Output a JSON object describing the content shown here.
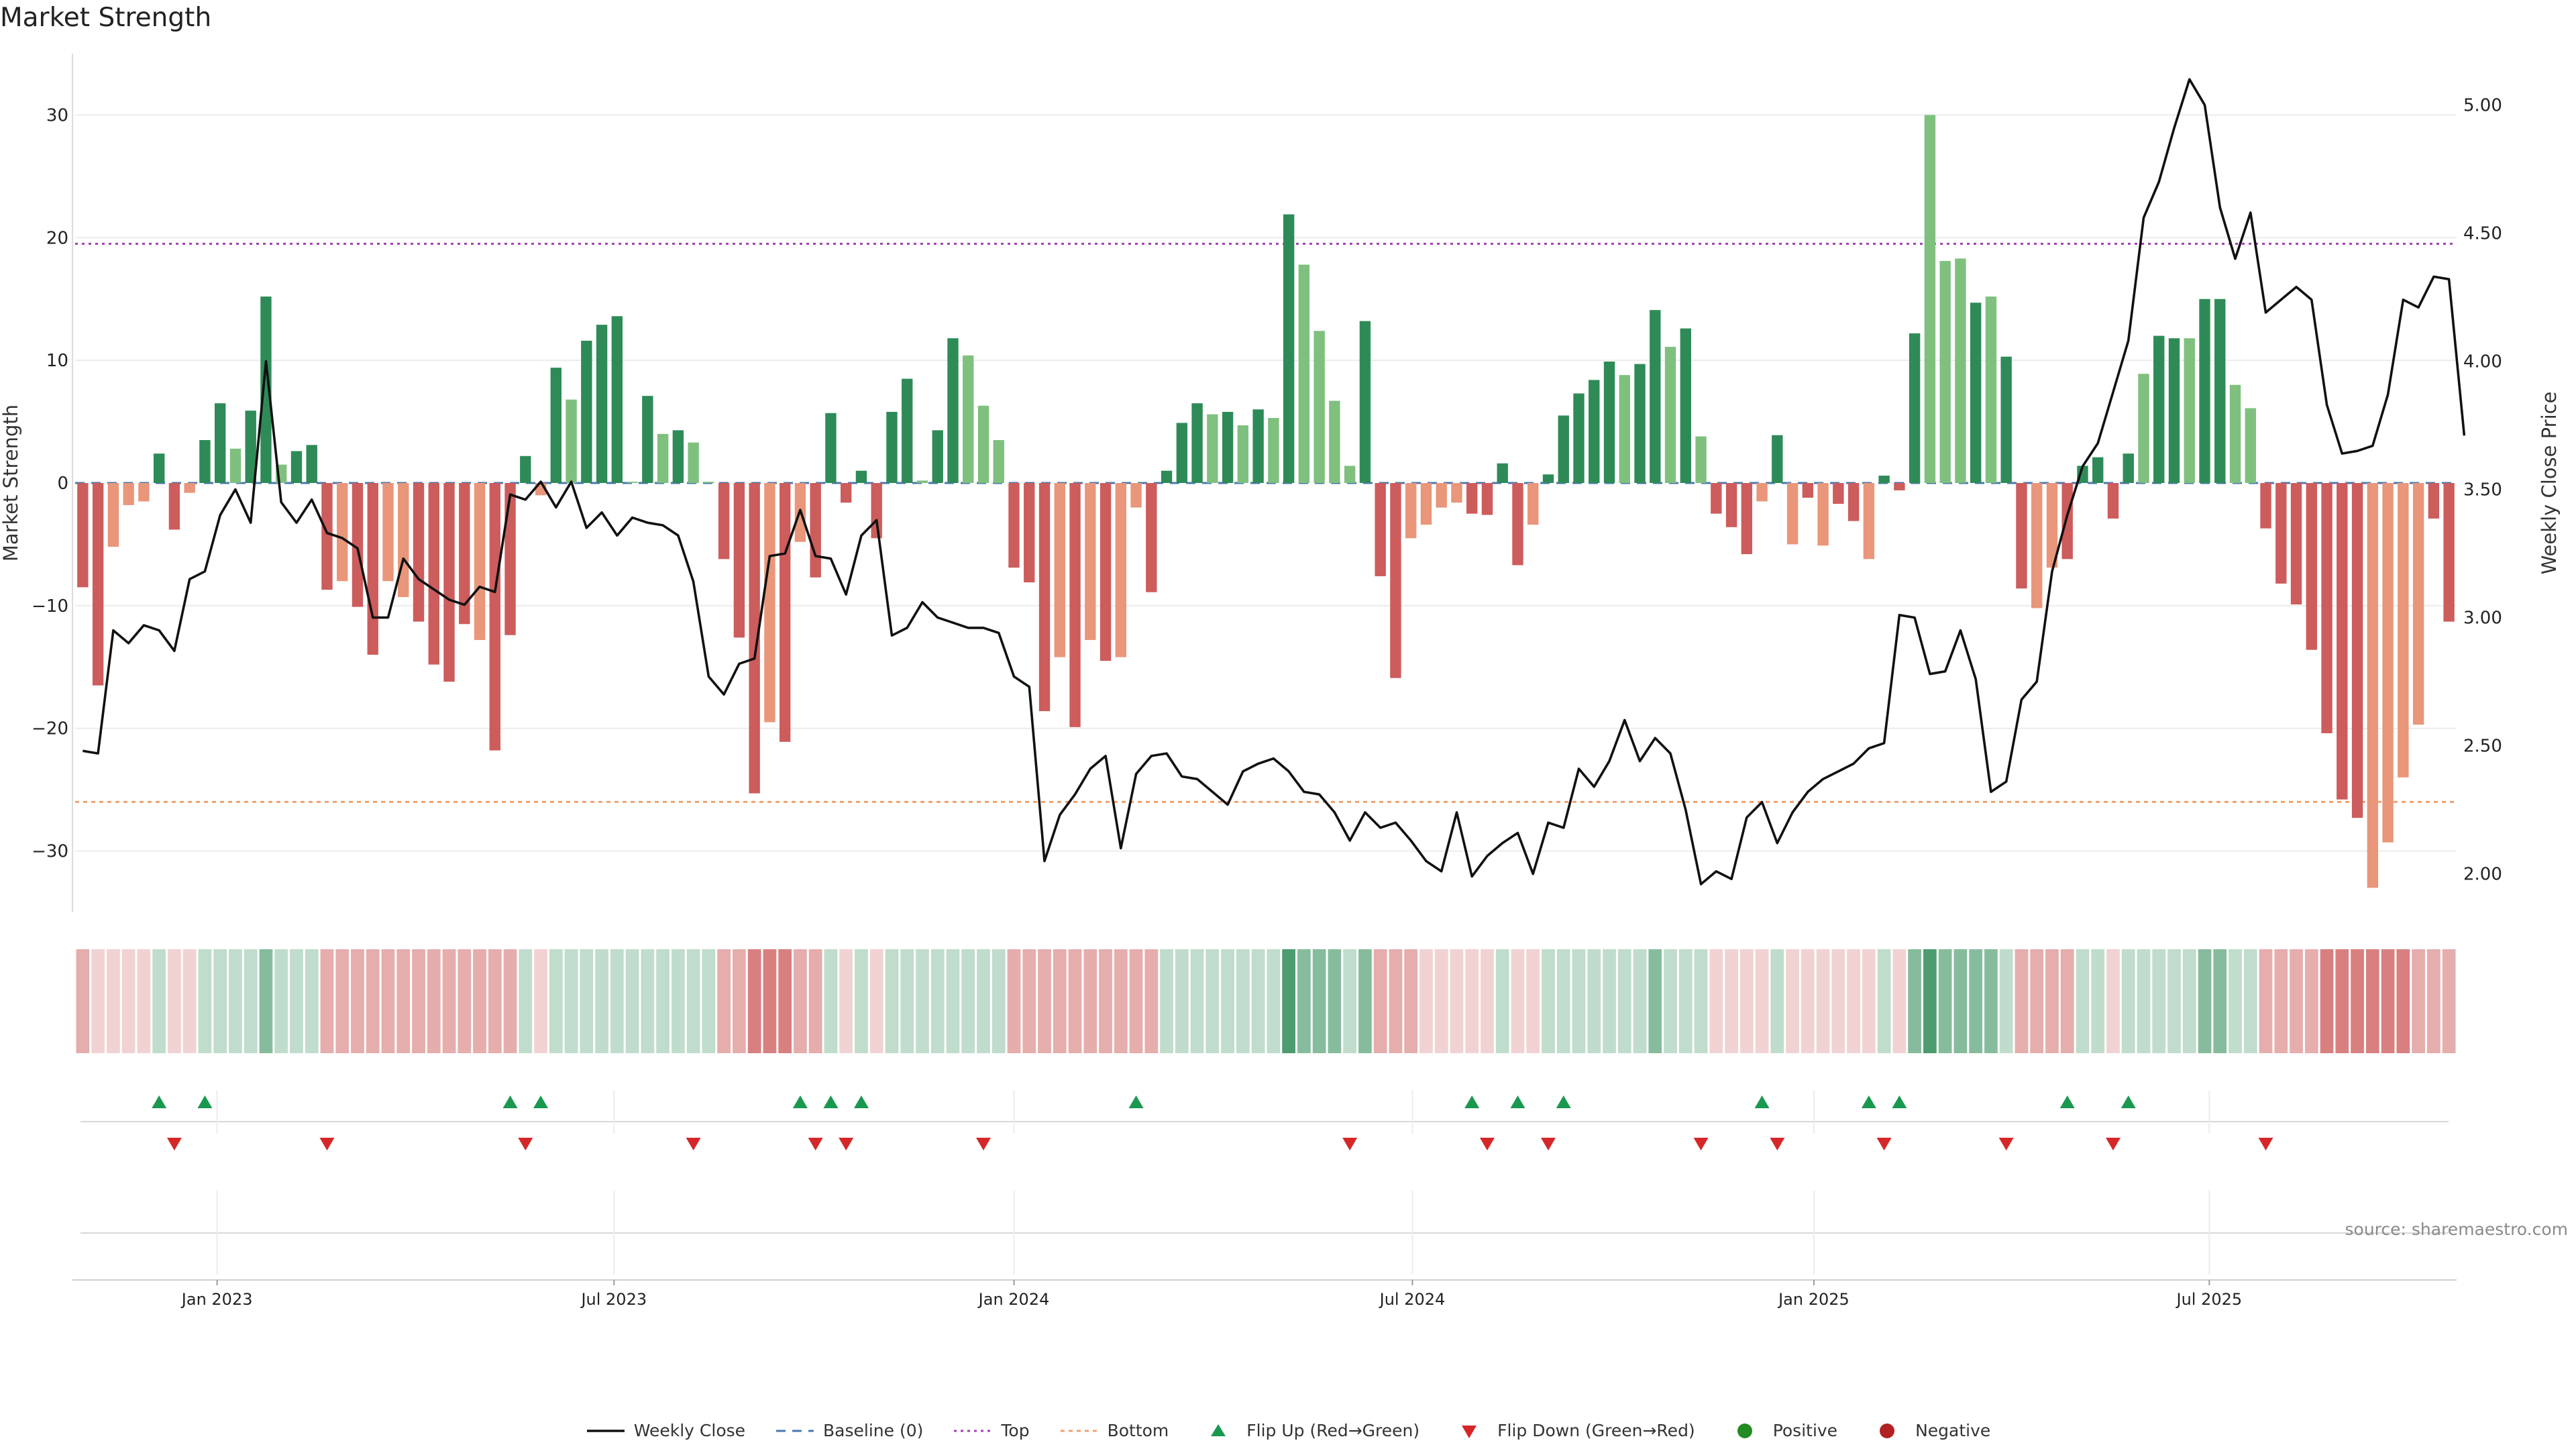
{
  "title": "Market Strength",
  "source": "source: sharemaestro.com",
  "colors": {
    "pos_strong": "#2e8b57",
    "pos_light": "#7fc07f",
    "neg_strong": "#cd5c5c",
    "neg_light": "#e9967a",
    "price_line": "#111111",
    "baseline": "#4a78b0",
    "top": "#a040b0",
    "bottom": "#f0a070",
    "flip_up": "#1a9850",
    "flip_down": "#d62728"
  },
  "legend": [
    {
      "key": "line",
      "label": "Weekly Close"
    },
    {
      "key": "baseline",
      "label": "Baseline (0)"
    },
    {
      "key": "top",
      "label": "Top"
    },
    {
      "key": "bottom",
      "label": "Bottom"
    },
    {
      "key": "flip_up",
      "label": "Flip Up (Red→Green)"
    },
    {
      "key": "flip_down",
      "label": "Flip Down (Green→Red)"
    },
    {
      "key": "positive",
      "label": "Positive"
    },
    {
      "key": "negative",
      "label": "Negative"
    }
  ],
  "chart_data": {
    "type": "bar",
    "title": "Market Strength",
    "ylabel": "Market Strength",
    "y2label": "Weekly Close Price",
    "ylim": [
      -35,
      35
    ],
    "y2lim": [
      1.85,
      5.2
    ],
    "yticks": [
      -30,
      -20,
      -10,
      0,
      10,
      20,
      30
    ],
    "y2ticks": [
      "2.00",
      "2.50",
      "3.00",
      "3.50",
      "4.00",
      "4.50",
      "5.00"
    ],
    "y2tick_values": [
      2.0,
      2.5,
      3.0,
      3.5,
      4.0,
      4.5,
      5.0
    ],
    "top_level": 19.5,
    "bottom_level": -26,
    "xticks": [
      {
        "label": "Jan 2023",
        "index": 9.3
      },
      {
        "label": "Jul 2023",
        "index": 35.3
      },
      {
        "label": "Jan 2024",
        "index": 61.5
      },
      {
        "label": "Jul 2024",
        "index": 87.6
      },
      {
        "label": "Jan 2025",
        "index": 113.9
      },
      {
        "label": "Jul 2025",
        "index": 139.8
      }
    ],
    "strength": [
      -8.5,
      -16.5,
      -5.2,
      -1.8,
      -1.5,
      2.4,
      -3.8,
      -0.8,
      3.5,
      6.5,
      2.8,
      5.9,
      15.2,
      1.5,
      2.6,
      3.1,
      -8.7,
      -8.0,
      -10.1,
      -14.0,
      -8.0,
      -9.3,
      -11.3,
      -14.8,
      -16.2,
      -11.5,
      -12.8,
      -21.8,
      -12.4,
      2.2,
      -1.0,
      9.4,
      6.8,
      11.6,
      12.9,
      13.6,
      0.1,
      7.1,
      4.0,
      4.3,
      3.3,
      0.1,
      -6.2,
      -12.6,
      -25.3,
      -19.5,
      -21.1,
      -4.8,
      -7.7,
      5.7,
      -1.6,
      1.0,
      -4.5,
      5.8,
      8.5,
      0.2,
      4.3,
      11.8,
      10.4,
      6.3,
      3.5,
      -6.9,
      -8.1,
      -18.6,
      -14.2,
      -19.9,
      -12.8,
      -14.5,
      -14.2,
      -2.0,
      -8.9,
      1.0,
      4.9,
      6.5,
      5.6,
      5.8,
      4.7,
      6.0,
      5.3,
      21.9,
      17.8,
      12.4,
      6.7,
      1.4,
      13.2,
      -7.6,
      -15.9,
      -4.5,
      -3.4,
      -2.0,
      -1.6,
      -2.5,
      -2.6,
      1.6,
      -6.7,
      -3.4,
      0.7,
      5.5,
      7.3,
      8.4,
      9.9,
      8.8,
      9.7,
      14.1,
      11.1,
      12.6,
      3.8,
      -2.5,
      -3.6,
      -5.8,
      -1.5,
      3.9,
      -5.0,
      -1.2,
      -5.1,
      -1.7,
      -3.1,
      -6.2,
      0.6,
      -0.6,
      12.2,
      30.0,
      18.1,
      18.3,
      14.7,
      15.2,
      10.3,
      -8.6,
      -10.2,
      -6.9,
      -6.2,
      1.4,
      2.1,
      -2.9,
      2.4,
      8.9,
      12.0,
      11.8,
      11.8,
      15.0,
      15.0,
      8.0,
      6.1,
      -3.7,
      -8.2,
      -9.9,
      -13.6,
      -20.4,
      -25.8,
      -27.3,
      -33.0,
      -29.3,
      -24.0,
      -19.7,
      -2.9,
      -11.3
    ],
    "strength_light": [
      0,
      0,
      1,
      1,
      1,
      0,
      0,
      1,
      0,
      0,
      1,
      0,
      0,
      1,
      0,
      0,
      0,
      1,
      0,
      0,
      1,
      1,
      0,
      0,
      0,
      0,
      1,
      0,
      0,
      0,
      1,
      0,
      1,
      0,
      0,
      0,
      1,
      0,
      1,
      0,
      1,
      1,
      0,
      0,
      0,
      1,
      0,
      1,
      0,
      0,
      0,
      0,
      0,
      0,
      0,
      1,
      0,
      0,
      1,
      1,
      1,
      0,
      0,
      0,
      1,
      0,
      1,
      0,
      1,
      1,
      0,
      0,
      0,
      0,
      1,
      0,
      1,
      0,
      1,
      0,
      1,
      1,
      1,
      1,
      0,
      0,
      0,
      1,
      1,
      1,
      1,
      0,
      0,
      0,
      0,
      1,
      0,
      0,
      0,
      0,
      0,
      1,
      0,
      0,
      1,
      0,
      1,
      0,
      0,
      0,
      1,
      0,
      1,
      0,
      1,
      0,
      0,
      1,
      0,
      0,
      0,
      1,
      1,
      1,
      0,
      1,
      0,
      0,
      1,
      1,
      0,
      0,
      0,
      0,
      0,
      1,
      0,
      0,
      1,
      0,
      0,
      1,
      1,
      0,
      0,
      0,
      0,
      0,
      0,
      0,
      1,
      1,
      1,
      1,
      0,
      0
    ],
    "price": [
      2.48,
      2.47,
      2.95,
      2.9,
      2.97,
      2.95,
      2.87,
      3.15,
      3.18,
      3.4,
      3.5,
      3.37,
      4.0,
      3.45,
      3.37,
      3.46,
      3.33,
      3.31,
      3.27,
      3.0,
      3.0,
      3.23,
      3.15,
      3.11,
      3.07,
      3.05,
      3.12,
      3.1,
      3.48,
      3.46,
      3.53,
      3.43,
      3.53,
      3.35,
      3.41,
      3.32,
      3.39,
      3.37,
      3.36,
      3.32,
      3.14,
      2.77,
      2.7,
      2.82,
      2.84,
      3.24,
      3.25,
      3.42,
      3.24,
      3.23,
      3.09,
      3.32,
      3.38,
      2.93,
      2.96,
      3.06,
      3.0,
      2.98,
      2.96,
      2.96,
      2.94,
      2.77,
      2.73,
      2.05,
      2.23,
      2.31,
      2.41,
      2.46,
      2.1,
      2.39,
      2.46,
      2.47,
      2.38,
      2.37,
      2.32,
      2.27,
      2.4,
      2.43,
      2.45,
      2.4,
      2.32,
      2.31,
      2.24,
      2.13,
      2.24,
      2.18,
      2.2,
      2.13,
      2.05,
      2.01,
      2.24,
      1.99,
      2.07,
      2.12,
      2.16,
      2.0,
      2.2,
      2.18,
      2.41,
      2.34,
      2.44,
      2.6,
      2.44,
      2.53,
      2.47,
      2.25,
      1.96,
      2.01,
      1.98,
      2.22,
      2.28,
      2.12,
      2.24,
      2.32,
      2.37,
      2.4,
      2.43,
      2.49,
      2.51,
      3.01,
      3.0,
      2.78,
      2.79,
      2.95,
      2.76,
      2.32,
      2.36,
      2.68,
      2.75,
      3.18,
      3.4,
      3.59,
      3.68,
      3.88,
      4.08,
      4.56,
      4.7,
      4.91,
      5.1,
      5.0,
      4.6,
      4.4,
      4.58,
      4.19,
      4.24,
      4.29,
      4.24,
      3.83,
      3.64,
      3.65,
      3.67,
      3.87,
      4.24,
      4.21,
      4.33,
      4.32,
      3.71
    ]
  },
  "color_strip": [
    -2,
    -1,
    -1,
    -1,
    -1,
    1,
    -1,
    -1,
    1,
    1,
    1,
    1,
    2,
    1,
    1,
    1,
    -2,
    -2,
    -2,
    -2,
    -2,
    -2,
    -2,
    -2,
    -2,
    -2,
    -2,
    -2,
    -2,
    1,
    -1,
    1,
    1,
    1,
    1,
    1,
    1,
    1,
    1,
    1,
    1,
    1,
    -2,
    -2,
    -3,
    -3,
    -3,
    -2,
    -2,
    1,
    -1,
    1,
    -1,
    1,
    1,
    1,
    1,
    1,
    1,
    1,
    1,
    -2,
    -2,
    -2,
    -2,
    -2,
    -2,
    -2,
    -2,
    -2,
    -2,
    1,
    1,
    1,
    1,
    1,
    1,
    1,
    1,
    3,
    2,
    2,
    2,
    1,
    2,
    -2,
    -2,
    -2,
    -1,
    -1,
    -1,
    -1,
    -1,
    1,
    -1,
    -1,
    1,
    1,
    1,
    1,
    1,
    1,
    1,
    2,
    1,
    1,
    1,
    -1,
    -1,
    -1,
    -1,
    1,
    -1,
    -1,
    -1,
    -1,
    -1,
    -1,
    1,
    -1,
    2,
    3,
    2,
    2,
    2,
    2,
    1,
    -2,
    -2,
    -2,
    -2,
    1,
    1,
    -1,
    1,
    1,
    1,
    1,
    1,
    2,
    2,
    1,
    1,
    -2,
    -2,
    -2,
    -2,
    -3,
    -3,
    -3,
    -3,
    -3,
    -3,
    -2,
    -2,
    -2
  ],
  "flip_up_indices": [
    5,
    8,
    28,
    30,
    47,
    49,
    51,
    69,
    91,
    94,
    97,
    110,
    117,
    119,
    130,
    134
  ],
  "flip_down_indices": [
    6,
    16,
    29,
    40,
    48,
    50,
    59,
    83,
    92,
    96,
    106,
    111,
    118,
    126,
    133,
    143
  ]
}
